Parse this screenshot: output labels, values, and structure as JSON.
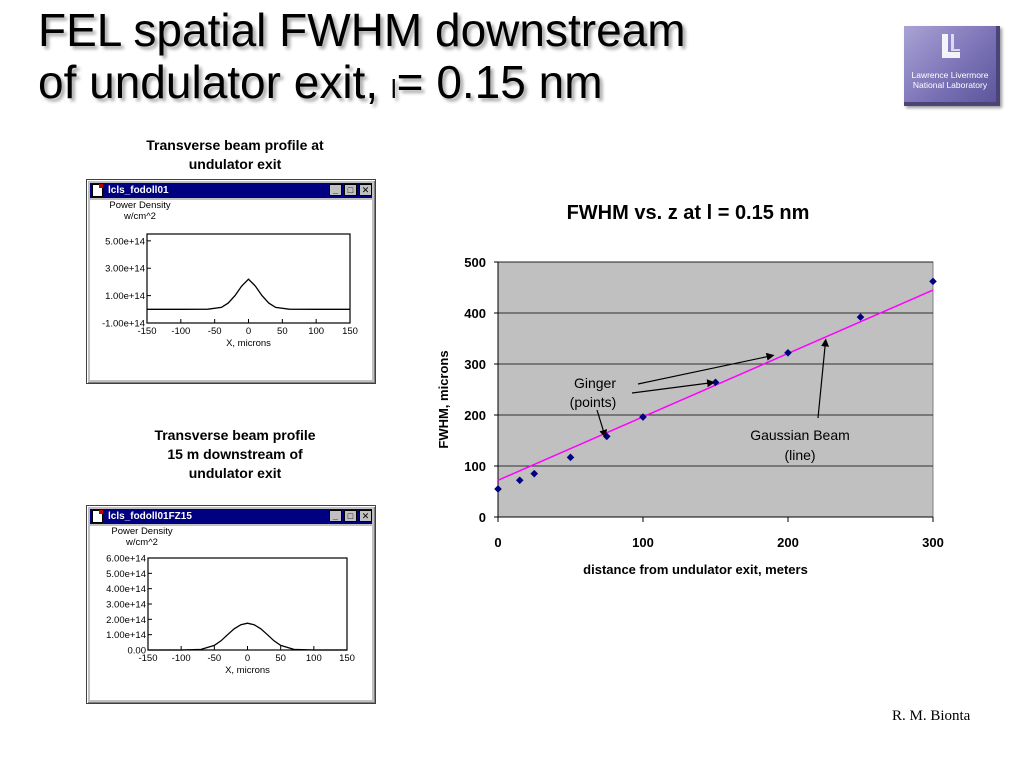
{
  "slide": {
    "title_line1": "FEL spatial FWHM downstream",
    "title_line2_a": "of undulator exit, ",
    "title_symbol": "l",
    "title_line2_b": "= 0.15 nm",
    "author": "R. M. Bionta",
    "logo": {
      "line1": "Lawrence Livermore",
      "line2": "National Laboratory",
      "color": "#8a82c4"
    }
  },
  "captions": {
    "top": [
      "Transverse beam profile at",
      "undulator exit"
    ],
    "bottom": [
      "Transverse beam profile",
      "15 m downstream of",
      "undulator exit"
    ]
  },
  "windows": [
    {
      "title": "lcls_fodoll01",
      "ylabel": [
        "Power Density",
        "w/cm^2"
      ],
      "xlabel": "X, microns",
      "buttons": [
        "_",
        "□",
        "✕"
      ]
    },
    {
      "title": "lcls_fodoll01FZ15",
      "ylabel": [
        "Power Density",
        "w/cm^2"
      ],
      "xlabel": "X, microns",
      "buttons": [
        "_",
        "□",
        "✕"
      ]
    }
  ],
  "chart_data": [
    {
      "type": "line",
      "title": "",
      "xlabel": "X, microns",
      "ylabel": "Power Density w/cm^2",
      "x_ticks": [
        "-150",
        "-100",
        "-50",
        "0",
        "50",
        "100",
        "150"
      ],
      "y_ticks": [
        "-1.00e+14",
        "1.00e+14",
        "3.00e+14",
        "5.00e+14"
      ],
      "xlim": [
        -150,
        150
      ],
      "ylim": [
        -100000000000000.0,
        550000000000000.0
      ],
      "series": [
        {
          "x": [
            -150,
            -100,
            -60,
            -40,
            -30,
            -20,
            -10,
            0,
            10,
            20,
            30,
            40,
            60,
            100,
            150
          ],
          "values": [
            0,
            0,
            1000000000000.0,
            14000000000000.0,
            45000000000000.0,
            100000000000000.0,
            170000000000000.0,
            220000000000000.0,
            170000000000000.0,
            100000000000000.0,
            45000000000000.0,
            14000000000000.0,
            1000000000000.0,
            0,
            0
          ]
        }
      ]
    },
    {
      "type": "line",
      "title": "",
      "xlabel": "X, microns",
      "ylabel": "Power Density w/cm^2",
      "x_ticks": [
        "-150",
        "-100",
        "-50",
        "0",
        "50",
        "100",
        "150"
      ],
      "y_ticks": [
        "0.00",
        "1.00e+14",
        "2.00e+14",
        "3.00e+14",
        "4.00e+14",
        "5.00e+14",
        "6.00e+14"
      ],
      "xlim": [
        -150,
        150
      ],
      "ylim": [
        0,
        600000000000000.0
      ],
      "series": [
        {
          "x": [
            -150,
            -100,
            -70,
            -50,
            -40,
            -30,
            -20,
            -10,
            0,
            10,
            20,
            30,
            40,
            50,
            70,
            100,
            150
          ],
          "values": [
            0,
            0,
            4000000000000.0,
            30000000000000.0,
            60000000000000.0,
            100000000000000.0,
            138000000000000.0,
            165000000000000.0,
            175000000000000.0,
            165000000000000.0,
            138000000000000.0,
            100000000000000.0,
            60000000000000.0,
            30000000000000.0,
            4000000000000.0,
            0,
            0
          ]
        }
      ]
    },
    {
      "type": "scatter",
      "title": "FWHM vs. z at l = 0.15 nm",
      "xlabel": "distance from undulator exit, meters",
      "ylabel": "FWHM, microns",
      "xlim": [
        0,
        300
      ],
      "ylim": [
        0,
        500
      ],
      "x_ticks": [
        "0",
        "100",
        "200",
        "300"
      ],
      "y_ticks": [
        "0",
        "100",
        "200",
        "300",
        "400",
        "500"
      ],
      "grid": true,
      "background": "#c0c0c0",
      "points": {
        "name": "Ginger (points)",
        "color": "#000080",
        "x": [
          0,
          15,
          25,
          50,
          75,
          100,
          150,
          200,
          250,
          300
        ],
        "y": [
          55,
          72,
          85,
          117,
          158,
          196,
          264,
          322,
          392,
          462
        ]
      },
      "line": {
        "name": "Gaussian Beam (line)",
        "color": "#ff00ff",
        "x": [
          0,
          300
        ],
        "y": [
          72,
          445
        ]
      },
      "annotations": [
        {
          "text": [
            "Ginger",
            "(points)"
          ]
        },
        {
          "text": [
            "Gaussian Beam",
            "(line)"
          ]
        }
      ]
    }
  ]
}
